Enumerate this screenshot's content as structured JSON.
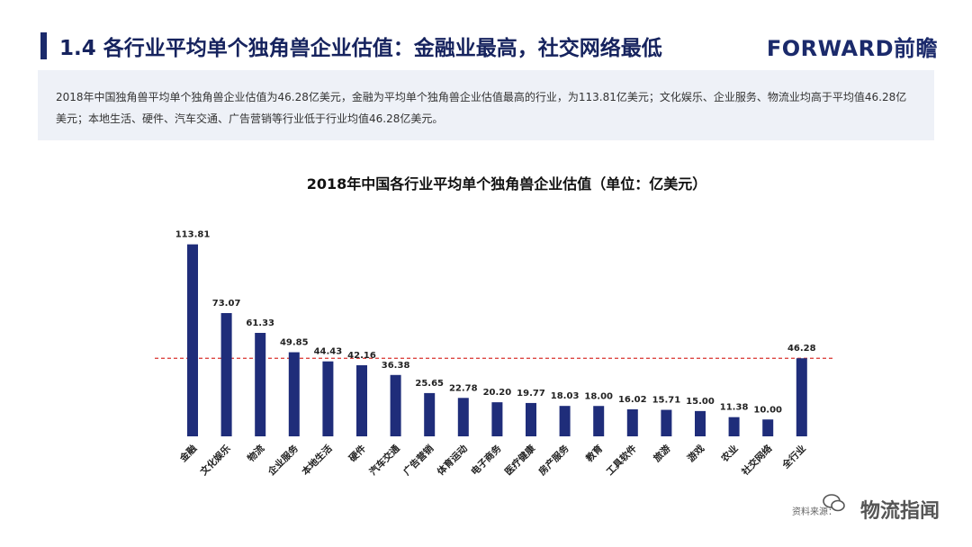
{
  "header": {
    "title": "1.4 各行业平均单个独角兽企业估值：金融业最高，社交网络最低",
    "brand": "FORWARD前瞻"
  },
  "summary_text": "2018年中国独角兽平均单个独角兽企业估值为46.28亿美元，金融为平均单个独角兽企业估值最高的行业，为113.81亿美元；文化娱乐、企业服务、物流业均高于平均值46.28亿美元；本地生活、硬件、汽车交通、广告营销等行业低于行业均值46.28亿美元。",
  "footer": {
    "source": "资料来源：",
    "watermark": "物流指闻"
  },
  "colors": {
    "bar": "#1f2d7a",
    "avg_line": "#d9322c",
    "title": "#16235e"
  },
  "chart_data": {
    "type": "bar",
    "title": "2018年中国各行业平均单个独角兽企业估值（单位：亿美元）",
    "categories": [
      "金融",
      "文化娱乐",
      "物流",
      "企业服务",
      "本地生活",
      "硬件",
      "汽车交通",
      "广告营销",
      "体育运动",
      "电子商务",
      "医疗健康",
      "房产服务",
      "教育",
      "工具软件",
      "旅游",
      "游戏",
      "农业",
      "社交网络",
      "全行业"
    ],
    "values": [
      113.81,
      73.07,
      61.33,
      49.85,
      44.43,
      42.16,
      36.38,
      25.65,
      22.78,
      20.2,
      19.77,
      18.03,
      18.0,
      16.02,
      15.71,
      15.0,
      11.38,
      10.0,
      46.28
    ],
    "labels": [
      "113.81",
      "73.07",
      "61.33",
      "49.85",
      "44.43",
      "42.16",
      "36.38",
      "25.65",
      "22.78",
      "20.20",
      "19.77",
      "18.03",
      "18.00",
      "16.02",
      "15.71",
      "15.00",
      "11.38",
      "10.00",
      "46.28"
    ],
    "reference_line": {
      "value": 46.28,
      "style": "dashed"
    },
    "ylim": [
      0,
      120
    ],
    "xlabel": "",
    "ylabel": ""
  }
}
